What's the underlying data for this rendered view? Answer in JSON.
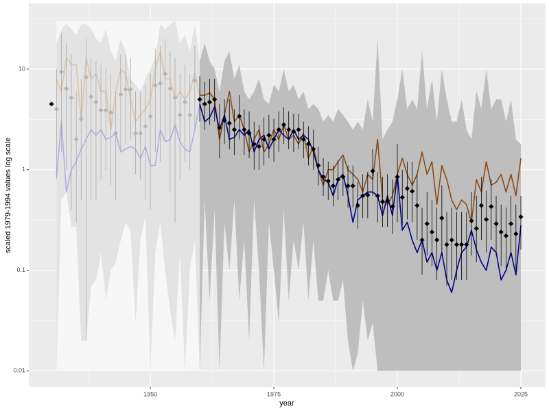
{
  "chart_data": {
    "type": "line",
    "x_label": "year",
    "y_label": "scaled 1979-1994 values log scale",
    "log_y": true,
    "grid": true,
    "fade_before": 1960,
    "xlim": [
      1925.4,
      2030
    ],
    "ylim": [
      0.0069,
      45
    ],
    "xticks": [
      1950,
      1975,
      2000,
      2025
    ],
    "yticks": [
      0.01,
      0.1,
      1,
      10
    ],
    "background_box": {
      "xlim": [
        1931,
        1960
      ],
      "ylim": [
        0.01,
        30
      ],
      "color": "#f7f7f7"
    },
    "x": [
      1930,
      1931,
      1932,
      1933,
      1934,
      1935,
      1936,
      1937,
      1938,
      1939,
      1940,
      1941,
      1942,
      1943,
      1944,
      1945,
      1946,
      1947,
      1948,
      1949,
      1950,
      1951,
      1952,
      1953,
      1954,
      1955,
      1956,
      1957,
      1958,
      1959,
      1960,
      1961,
      1962,
      1963,
      1964,
      1965,
      1966,
      1967,
      1968,
      1969,
      1970,
      1971,
      1972,
      1973,
      1974,
      1975,
      1976,
      1977,
      1978,
      1979,
      1980,
      1981,
      1982,
      1983,
      1984,
      1985,
      1986,
      1987,
      1988,
      1989,
      1990,
      1991,
      1992,
      1993,
      1994,
      1995,
      1996,
      1997,
      1998,
      1999,
      2000,
      2001,
      2002,
      2003,
      2004,
      2005,
      2006,
      2007,
      2008,
      2009,
      2010,
      2011,
      2012,
      2013,
      2014,
      2015,
      2016,
      2017,
      2018,
      2019,
      2020,
      2021,
      2022,
      2023,
      2024,
      2025
    ],
    "ribbon": {
      "color": "#bebebe",
      "faded_color": "#e3e3e3",
      "upper": [
        null,
        18,
        25,
        28,
        25,
        22,
        28,
        28,
        25,
        20,
        18,
        25,
        15,
        12,
        20,
        15,
        8,
        7,
        6,
        8,
        10,
        13,
        28,
        25,
        28,
        30,
        18,
        22,
        15,
        28,
        12,
        18,
        12,
        10,
        6,
        12,
        15,
        8,
        11,
        6,
        5,
        6,
        8,
        5,
        4.5,
        7,
        6,
        10,
        6,
        7,
        5,
        6,
        4,
        4.5,
        4,
        3,
        3.5,
        3,
        4,
        3.5,
        3,
        2.5,
        3,
        2.5,
        5,
        3,
        20,
        2,
        2.5,
        3,
        5,
        10,
        4,
        5,
        4,
        15,
        4,
        8,
        3,
        10,
        5,
        3,
        3,
        5,
        2.5,
        2,
        6,
        4,
        10,
        4,
        5,
        5,
        3,
        5,
        2,
        1.8
      ],
      "lower": [
        null,
        0.01,
        0.5,
        0.6,
        0.27,
        0.27,
        0.02,
        0.02,
        0.07,
        0.08,
        0.15,
        0.05,
        0.1,
        0.12,
        0.2,
        0.3,
        0.25,
        0.03,
        0.2,
        0.35,
        0.01,
        0.15,
        0.3,
        0.1,
        0.04,
        0.02,
        0.15,
        0.01,
        0.1,
        0.2,
        0.01,
        0.5,
        0.05,
        0.4,
        0.01,
        0.3,
        0.1,
        0.5,
        0.05,
        0.2,
        0.02,
        0.5,
        0.1,
        0.01,
        0.3,
        0.1,
        0.03,
        0.4,
        0.05,
        0.2,
        0.1,
        0.3,
        0.05,
        0.2,
        0.05,
        0.05,
        0.1,
        0.05,
        0.05,
        0.08,
        0.02,
        0.01,
        0.015,
        0.05,
        0.02,
        0.03,
        0.01,
        0.01,
        0.01,
        0.01,
        0.01,
        0.01,
        0.01,
        0.01,
        0.01,
        0.01,
        0.01,
        0.01,
        0.01,
        0.01,
        0.01,
        0.01,
        0.01,
        0.01,
        0.01,
        0.01,
        0.01,
        0.01,
        0.01,
        0.01,
        0.01,
        0.01,
        0.01,
        0.01,
        0.01,
        0.01
      ]
    },
    "series": [
      {
        "color": "#8b4a10",
        "faded_color": "#dcc4aa",
        "values": [
          null,
          8,
          6,
          13,
          11,
          11,
          3,
          13,
          8,
          9,
          6,
          6,
          2.5,
          6,
          10,
          9,
          5,
          3,
          3.5,
          4,
          5,
          10,
          15,
          8,
          8,
          5,
          6,
          5,
          6,
          9,
          5.5,
          5.5,
          5.8,
          5,
          2,
          3.5,
          6,
          3,
          3.5,
          2.5,
          1.5,
          2,
          2.5,
          1.5,
          1.8,
          2.5,
          2,
          2.8,
          2,
          2.2,
          1.8,
          2.3,
          1.3,
          1.7,
          1.0,
          0.7,
          1.0,
          1.0,
          1.2,
          1.4,
          1.0,
          0.9,
          0.8,
          0.6,
          0.9,
          0.8,
          2.0,
          0.5,
          0.45,
          0.55,
          0.9,
          1.3,
          0.9,
          0.7,
          0.9,
          1.5,
          0.9,
          1.2,
          0.45,
          1.1,
          0.8,
          0.5,
          0.4,
          0.5,
          0.45,
          0.3,
          0.8,
          0.6,
          1.2,
          0.7,
          0.75,
          0.9,
          0.6,
          0.9,
          0.55,
          1.3
        ]
      },
      {
        "color": "#00008b",
        "faded_color": "#b0b0dc",
        "values": [
          null,
          0.85,
          3,
          0.6,
          1,
          1.2,
          1.6,
          2.0,
          2.5,
          2.2,
          2.5,
          2.0,
          2.1,
          2.3,
          1.5,
          1.6,
          1.7,
          1.6,
          1.3,
          1.7,
          1.1,
          1.1,
          2.5,
          1.9,
          2.0,
          2.8,
          1.9,
          1.6,
          1.5,
          2.5,
          4.5,
          3,
          3.3,
          4.2,
          2.5,
          3.5,
          2.0,
          2.1,
          2.5,
          2.2,
          2.5,
          1.5,
          2.0,
          2.2,
          1.6,
          2.0,
          2.5,
          2.2,
          2.0,
          2.5,
          2.0,
          2.2,
          2.0,
          1.5,
          1.0,
          0.8,
          0.75,
          0.55,
          0.8,
          0.9,
          0.55,
          0.3,
          0.5,
          0.55,
          0.6,
          0.6,
          0.55,
          0.35,
          0.55,
          0.35,
          0.9,
          0.25,
          0.3,
          0.2,
          0.15,
          0.2,
          0.12,
          0.15,
          0.1,
          0.15,
          0.08,
          0.06,
          0.1,
          0.15,
          0.17,
          0.25,
          0.16,
          0.12,
          0.1,
          0.17,
          0.15,
          0.08,
          0.1,
          0.15,
          0.09,
          0.28
        ]
      }
    ],
    "points": {
      "color": "#000000",
      "faded_color": "#b5b5b5",
      "bar_color": "#000000",
      "bar_faded_color": "#a8a8a8",
      "values": [
        4.5,
        4.0,
        9.4,
        6.4,
        5.2,
        2.0,
        3.2,
        8.3,
        5.3,
        4.7,
        3.9,
        3.9,
        3.7,
        2.3,
        5.6,
        6.3,
        6.3,
        2.3,
        2.3,
        2.7,
        3.4,
        6.9,
        7.2,
        9.0,
        6.4,
        5.2,
        3.5,
        4.7,
        3.5,
        7.7,
        5.0,
        4.5,
        4.7,
        5.0,
        2.6,
        3.1,
        2.9,
        2.5,
        3.4,
        2.5,
        2.3,
        1.8,
        1.7,
        2.0,
        2.2,
        2.0,
        2.5,
        2.8,
        2.5,
        2.4,
        2.5,
        2.0,
        1.8,
        1.6,
        1.1,
        0.85,
        0.77,
        0.69,
        0.8,
        0.85,
        0.69,
        0.69,
        0.44,
        0.55,
        0.56,
        0.97,
        0.55,
        0.48,
        0.49,
        0.43,
        0.85,
        0.53,
        0.65,
        0.61,
        0.44,
        0.2,
        0.29,
        0.24,
        0.2,
        0.33,
        0.18,
        0.2,
        0.18,
        0.18,
        0.18,
        0.31,
        0.26,
        0.44,
        0.32,
        0.43,
        0.29,
        0.24,
        0.22,
        0.29,
        0.23,
        0.34
      ],
      "upper": [
        null,
        10,
        23,
        18,
        14,
        6,
        8,
        20,
        13,
        12,
        11,
        10,
        9,
        6,
        14,
        14,
        13,
        6,
        6,
        7,
        9,
        16,
        17,
        20,
        15,
        13,
        9,
        11,
        9,
        17,
        8.5,
        7.5,
        8,
        8,
        4.5,
        5,
        5,
        4,
        5.5,
        4,
        3.8,
        3,
        2.8,
        3.3,
        3.5,
        3.2,
        3.8,
        4.2,
        3.8,
        3.6,
        3.6,
        3,
        2.7,
        2.5,
        1.7,
        1.3,
        1.2,
        1.1,
        1.25,
        1.3,
        1.1,
        1.1,
        0.75,
        0.9,
        0.95,
        1.6,
        0.95,
        0.85,
        0.9,
        0.8,
        1.8,
        1.0,
        1.2,
        1.2,
        0.9,
        0.42,
        0.6,
        0.5,
        0.42,
        0.7,
        0.38,
        0.42,
        0.38,
        0.38,
        0.38,
        0.6,
        0.55,
        0.85,
        0.62,
        0.8,
        0.55,
        0.45,
        0.42,
        0.55,
        0.45,
        0.55
      ],
      "lower": [
        null,
        0.8,
        1.5,
        1.0,
        0.4,
        0.3,
        0.5,
        0.02,
        0.5,
        0.5,
        0.8,
        1.0,
        0.7,
        0.5,
        1.5,
        1.8,
        2.0,
        0.9,
        0.8,
        0.5,
        0.4,
        1.5,
        1.2,
        2.0,
        0.6,
        0.3,
        0.8,
        1.2,
        1.0,
        2.5,
        3.0,
        2.5,
        2.8,
        3.0,
        1.3,
        1.8,
        1.6,
        1.4,
        2.0,
        1.4,
        1.3,
        1.0,
        1.0,
        1.1,
        1.3,
        1.2,
        1.5,
        1.8,
        1.6,
        1.5,
        1.6,
        1.3,
        1.1,
        1.0,
        0.7,
        0.55,
        0.5,
        0.43,
        0.5,
        0.55,
        0.42,
        0.42,
        0.26,
        0.33,
        0.33,
        0.55,
        0.3,
        0.27,
        0.27,
        0.23,
        0.3,
        0.28,
        0.32,
        0.3,
        0.2,
        0.09,
        0.14,
        0.11,
        0.08,
        0.15,
        0.07,
        0.08,
        0.08,
        0.08,
        0.08,
        0.14,
        0.12,
        0.2,
        0.15,
        0.2,
        0.14,
        0.11,
        0.1,
        0.14,
        0.1,
        0.16
      ]
    }
  }
}
